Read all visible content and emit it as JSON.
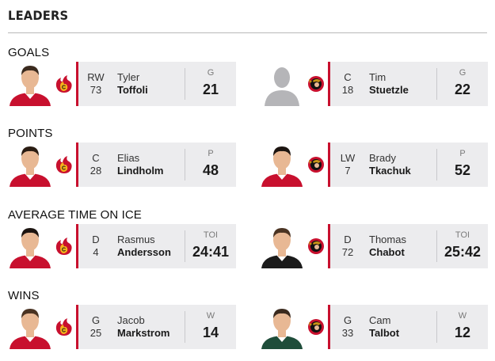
{
  "header": {
    "title": "LEADERS"
  },
  "sections": [
    {
      "title": "GOALS",
      "left": {
        "pos": "RW",
        "number": "73",
        "first": "Tyler",
        "last": "Toffoli",
        "stat_label": "G",
        "stat_value": "21",
        "team": "calgary-flames",
        "photo": "player-photo",
        "jersey_color": "#c8102e"
      },
      "right": {
        "pos": "C",
        "number": "18",
        "first": "Tim",
        "last": "Stuetzle",
        "stat_label": "G",
        "stat_value": "22",
        "team": "ottawa-senators",
        "photo": "placeholder-silhouette",
        "jersey_color": "#c8102e"
      }
    },
    {
      "title": "POINTS",
      "left": {
        "pos": "C",
        "number": "28",
        "first": "Elias",
        "last": "Lindholm",
        "stat_label": "P",
        "stat_value": "48",
        "team": "calgary-flames",
        "photo": "player-photo",
        "jersey_color": "#c8102e"
      },
      "right": {
        "pos": "LW",
        "number": "7",
        "first": "Brady",
        "last": "Tkachuk",
        "stat_label": "P",
        "stat_value": "52",
        "team": "ottawa-senators",
        "photo": "player-photo",
        "jersey_color": "#c8102e"
      }
    },
    {
      "title": "AVERAGE TIME ON ICE",
      "left": {
        "pos": "D",
        "number": "4",
        "first": "Rasmus",
        "last": "Andersson",
        "stat_label": "TOI",
        "stat_value": "24:41",
        "team": "calgary-flames",
        "photo": "player-photo",
        "jersey_color": "#c8102e"
      },
      "right": {
        "pos": "D",
        "number": "72",
        "first": "Thomas",
        "last": "Chabot",
        "stat_label": "TOI",
        "stat_value": "25:42",
        "team": "ottawa-senators",
        "photo": "player-photo",
        "jersey_color": "#1b1b1b"
      }
    },
    {
      "title": "WINS",
      "left": {
        "pos": "G",
        "number": "25",
        "first": "Jacob",
        "last": "Markstrom",
        "stat_label": "W",
        "stat_value": "14",
        "team": "calgary-flames",
        "photo": "player-photo",
        "jersey_color": "#c8102e"
      },
      "right": {
        "pos": "G",
        "number": "33",
        "first": "Cam",
        "last": "Talbot",
        "stat_label": "W",
        "stat_value": "12",
        "team": "ottawa-senators",
        "photo": "player-photo",
        "jersey_color": "#1f4d3a"
      }
    }
  ],
  "colors": {
    "accent_red": "#c8102e",
    "card_bg": "#ececee",
    "divider": "#b8b8b8"
  }
}
